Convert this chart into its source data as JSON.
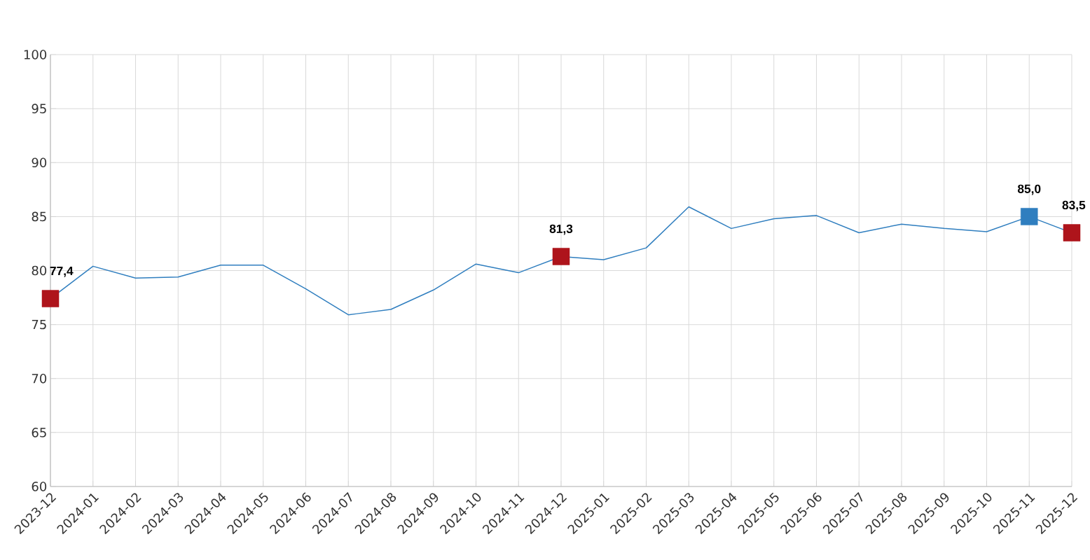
{
  "chart_data": {
    "type": "line",
    "categories": [
      "2023-12",
      "2024-01",
      "2024-02",
      "2024-03",
      "2024-04",
      "2024-05",
      "2024-06",
      "2024-07",
      "2024-08",
      "2024-09",
      "2024-10",
      "2024-11",
      "2024-12",
      "2025-01",
      "2025-02",
      "2025-03",
      "2025-04",
      "2025-05",
      "2025-06",
      "2025-07",
      "2025-08",
      "2025-09",
      "2025-10",
      "2025-11",
      "2025-12"
    ],
    "series": [
      {
        "color": "#2f7ebf",
        "marker": "none",
        "values": [
          77.4,
          80.4,
          79.3,
          79.4,
          80.5,
          80.5,
          78.3,
          75.9,
          76.4,
          78.2,
          80.6,
          79.8,
          81.3,
          81.0,
          82.1,
          85.9,
          83.9,
          84.8,
          85.1,
          83.5,
          84.3,
          83.9,
          83.6,
          85.0,
          83.5
        ],
        "value_labels": [
          "77,4",
          null,
          null,
          null,
          null,
          null,
          null,
          null,
          null,
          null,
          null,
          null,
          "81,3",
          null,
          null,
          null,
          null,
          null,
          null,
          null,
          null,
          null,
          null,
          "85,0",
          "83,5"
        ]
      },
      {
        "type": "scatter",
        "color": "#ae141b",
        "marker": "square",
        "values": [
          77.4,
          null,
          null,
          null,
          null,
          null,
          null,
          null,
          null,
          null,
          null,
          null,
          81.3,
          null,
          null,
          null,
          null,
          null,
          null,
          null,
          null,
          null,
          null,
          null,
          83.5
        ]
      },
      {
        "type": "scatter",
        "color": "#2f7ebf",
        "marker": "square",
        "values": [
          null,
          null,
          null,
          null,
          null,
          null,
          null,
          null,
          null,
          null,
          null,
          null,
          null,
          null,
          null,
          null,
          null,
          null,
          null,
          null,
          null,
          null,
          null,
          85.0,
          null
        ]
      }
    ],
    "ylim": [
      60,
      100
    ],
    "yticks": [
      60,
      65,
      70,
      75,
      80,
      85,
      90,
      95,
      100
    ],
    "grid": true
  }
}
